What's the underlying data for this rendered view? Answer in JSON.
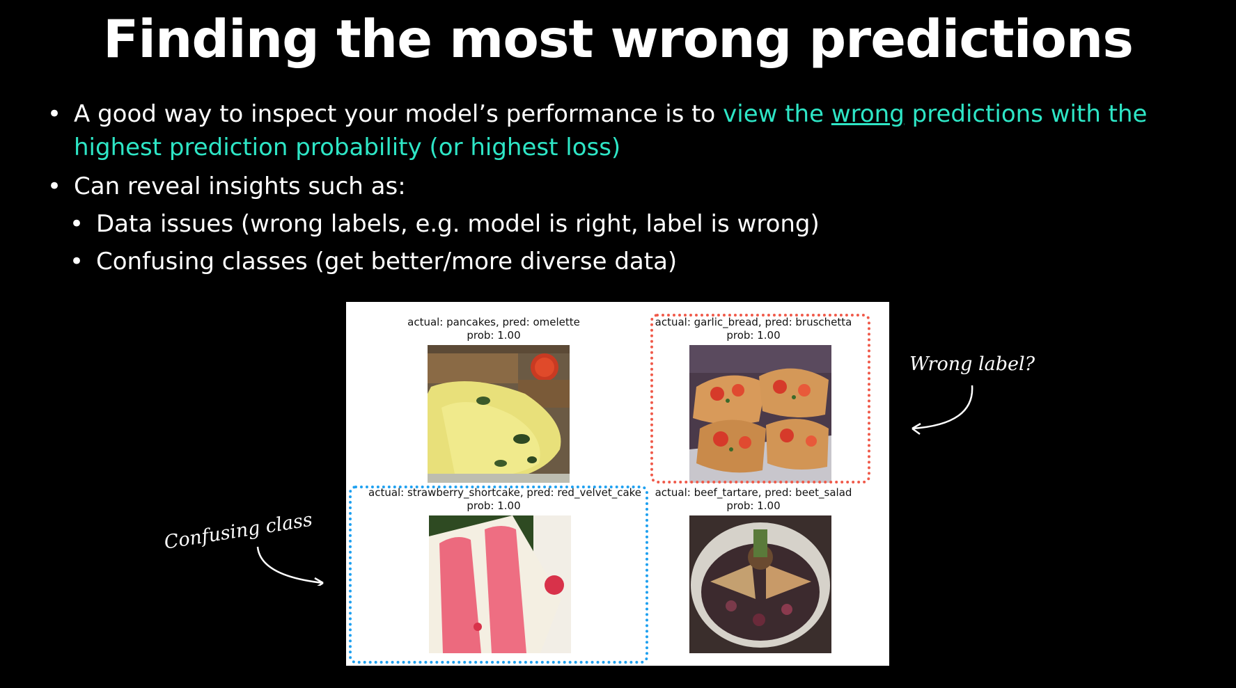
{
  "slide": {
    "title": "Finding the most wrong predictions"
  },
  "bullets": {
    "b1": {
      "part1": "A good way to inspect your model’s performance is to ",
      "hl1": "view the ",
      "hl_underlined": "wrong",
      "hl2": " predictions with the highest prediction probability (or highest loss)"
    },
    "b2": "Can reveal insights such as:",
    "sub1": "Data issues (wrong labels, e.g. model is right, label is wrong)",
    "sub2": "Confusing classes (get better/more diverse data)"
  },
  "figure": {
    "cells": [
      {
        "caption": "actual: pancakes, pred: omelette",
        "prob": "prob: 1.00",
        "image": "omelette-photo"
      },
      {
        "caption": "actual: garlic_bread, pred: bruschetta",
        "prob": "prob: 1.00",
        "image": "bruschetta-photo"
      },
      {
        "caption": "actual: strawberry_shortcake, pred: red_velvet_cake",
        "prob": "prob: 1.00",
        "image": "cake-photo"
      },
      {
        "caption": "actual: beef_tartare, pred: beet_salad",
        "prob": "prob: 1.00",
        "image": "tartare-photo"
      }
    ]
  },
  "annotations": {
    "wrong_label": "Wrong label?",
    "confusing_class": "Confusing class"
  },
  "colors": {
    "accent": "#2ee6c6",
    "red_highlight": "#f05a4a",
    "blue_highlight": "#1ea0f0"
  }
}
